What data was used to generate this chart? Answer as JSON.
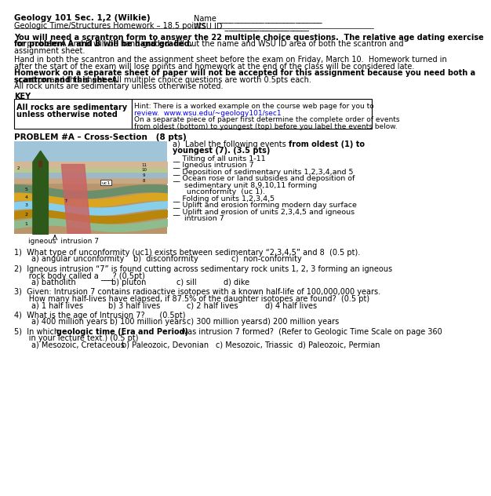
{
  "title1": "Geology 101 Sec. 1,2 (Wilkie)",
  "title2": "Geologic Time/Structures Homework – 18.5 points",
  "name_label": "Name ___________________________",
  "wsu_label": "WSU ID ______________________",
  "para1_bold": "You will need a scrantron form to answer the 22 multiple choice questions.  The relative age dating exercise\nfor problem A and B will be hand graded.",
  "para1_rest": " Fill out the name and WSU ID area of both the scantron and\nassignment sheet.",
  "para2": "Hand in both the scantron and the assignment sheet before the exam on Friday, March 10.  Homework turned in\nafter the start of the exam will lose points and homework at the end of the class will be considered late.",
  "para3_bold": "Homework on a separate sheet of paper will not be accepted for this assignment because you need both a\nscantron and this sheet.",
  "para3_rest": "  All multiple choice questions are worth 0.5pts each.",
  "para4": "All rock units are sedimentary unless otherwise noted.",
  "key_title": "KEY",
  "key_left": "All rocks are sedimentary\nunless otherwise noted",
  "hint1": "Hint: There is a worked example on the course web page for you to",
  "hint2": "review.  www.wsu.edu/~geology101/sec1",
  "hint3": "On a separate piece of paper first determine the complete order of events",
  "hint4": "from oldest (bottom) to youngest (top) before you label the events below.",
  "problem_title": "PROBLEM #A – Cross-Section   (8 pts)",
  "label_a1": "a)  Label the following events ",
  "label_a1b": "from oldest (1) to",
  "label_a2": "youngest (7). (3.5 pts)",
  "events": [
    "Tilting of all units 1-11",
    "Igneous intrusion 7",
    "Deposition of sedimentary units 1,2,3,4,and 5",
    "Ocean rose or land subsides and deposition of",
    "     sedimentary unit 8,9,10,11 forming",
    "      unconformity  (uc 1).",
    "Folding of units 1,2,3,4,5",
    "Uplift and erosion forming modern day surface",
    "Uplift and erosion of units 2,3,4,5 and igneous",
    "     intrusion 7"
  ],
  "event_has_blank": [
    true,
    true,
    true,
    true,
    false,
    false,
    true,
    true,
    true,
    false
  ],
  "igneous_label": "igneous  intrusion 7",
  "q1": "1)  What type of unconformity (uc1) exists between sedimentary “2,3,4,5” and 8  (0.5 pt).",
  "q1_a": "a) angular unconformity",
  "q1_b": "b)  disconformity",
  "q1_c": "c)  non-conformity",
  "q2a": "2)  Igneous intrusion “7” is found cutting across sedimentary rock units 1, 2, 3 forming an igneous",
  "q2b": "      rock body called a ___? (0.5pt)",
  "q2_a": "a) batholith",
  "q2_b": "b) pluton",
  "q2_c": "c) sill",
  "q2_d": "d) dike",
  "q3a": "3)  Given: Intrusion 7 contains radioactive isotopes with a known half-life of 100,000,000 years.",
  "q3b": "      How many half-lives have elapsed, if 87.5% of the daughter isotopes are found?  (0.5 pt)",
  "q3_a": "a) 1 half lives",
  "q3_b": "b) 3 half lives",
  "q3_c": "c) 2 half lives",
  "q3_d": "d) 4 half lives",
  "q4": "4)  What is the age of Intrusion 7?      (0.5pt)",
  "q4_a": "a) 400 million years",
  "q4_b": "b) 100 million years",
  "q4_c": "c) 300 million years",
  "q4_d": "d) 200 million years",
  "q5a": "5)  In which ",
  "q5a_bold": "geologic time (Era and Period)",
  "q5b": " was intrusion 7 formed?  (Refer to Geologic Time Scale on page 360",
  "q5c": "      in your lecture text.) (0.5 pt)",
  "q5_a": "a) Mesozoic, Cretaceous",
  "q5_b": "b) Paleozoic, Devonian",
  "q5_c": "c) Mesozoic, Triassic",
  "q5_d": "d) Paleozoic, Permian",
  "bg_color": "#ffffff"
}
